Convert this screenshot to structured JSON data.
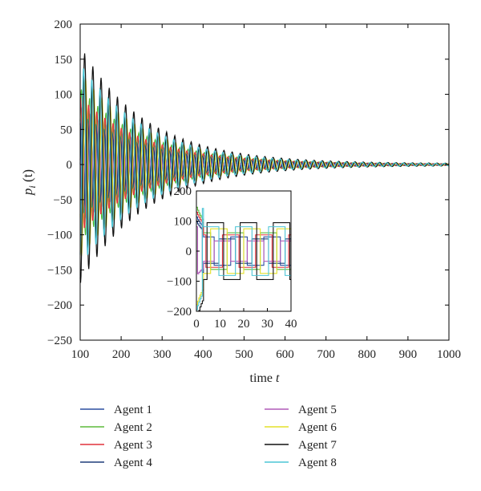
{
  "chart_data": [
    {
      "type": "line",
      "title": "",
      "xlabel": "time",
      "xlabel_var": "t",
      "ylabel_var": "p",
      "ylabel_sub": "i",
      "ylabel_arg": "(t)",
      "xlim": [
        100,
        1000
      ],
      "ylim": [
        -250,
        200
      ],
      "xticks": [
        100,
        200,
        300,
        400,
        500,
        600,
        700,
        800,
        900,
        1000
      ],
      "yticks": [
        -250,
        -200,
        -150,
        -100,
        -50,
        0,
        50,
        100,
        150,
        200
      ],
      "grid": false,
      "legend_position": "bottom",
      "signal_model": "damped square-wave oscillation, approximate envelope read from plot",
      "series": [
        {
          "name": "Agent 1",
          "color": "#2b4fa0",
          "amplitude": 35,
          "phase": 0.0,
          "period": 20,
          "decay": 160
        },
        {
          "name": "Agent 2",
          "color": "#5dbb3c",
          "amplitude": 45,
          "phase": 0.6,
          "period": 20,
          "decay": 160
        },
        {
          "name": "Agent 3",
          "color": "#e0323c",
          "amplitude": 40,
          "phase": 1.4,
          "period": 20,
          "decay": 160
        },
        {
          "name": "Agent 4",
          "color": "#1f3d7a",
          "amplitude": 30,
          "phase": 2.2,
          "period": 20,
          "decay": 160
        },
        {
          "name": "Agent 5",
          "color": "#b05ab8",
          "amplitude": 25,
          "phase": 3.0,
          "period": 20,
          "decay": 160
        },
        {
          "name": "Agent 6",
          "color": "#e3e02a",
          "amplitude": 55,
          "phase": 3.7,
          "period": 20,
          "decay": 160
        },
        {
          "name": "Agent 7",
          "color": "#111111",
          "amplitude": 70,
          "phase": 4.4,
          "period": 20,
          "decay": 160
        },
        {
          "name": "Agent 8",
          "color": "#4cc5d6",
          "amplitude": 60,
          "phase": 5.2,
          "period": 20,
          "decay": 160
        }
      ]
    },
    {
      "type": "line",
      "title": "",
      "xlim": [
        0,
        40
      ],
      "ylim": [
        -200,
        200
      ],
      "xticks": [
        0,
        10,
        20,
        30,
        40
      ],
      "yticks": [
        -200,
        -100,
        0,
        100,
        200
      ],
      "grid": false,
      "signal_model": "inset zoom of early transient, square-wave period about 14"
    }
  ]
}
